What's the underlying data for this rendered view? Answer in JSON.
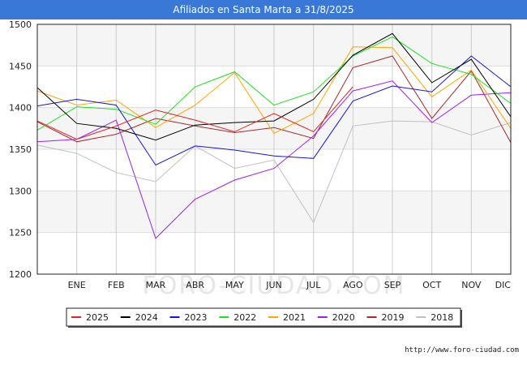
{
  "chart_data": {
    "type": "line",
    "title": "Afiliados en Santa Marta a 31/8/2025",
    "categories": [
      "DIC",
      "ENE",
      "FEB",
      "MAR",
      "ABR",
      "MAY",
      "JUN",
      "JUL",
      "AGO",
      "SEP",
      "OCT",
      "NOV",
      "DIC"
    ],
    "x_tick_labels": [
      "ENE",
      "FEB",
      "MAR",
      "ABR",
      "MAY",
      "JUN",
      "JUL",
      "AGO",
      "SEP",
      "OCT",
      "NOV",
      "DIC"
    ],
    "y_ticks": [
      1200,
      1250,
      1300,
      1350,
      1400,
      1450,
      1500
    ],
    "ylim": [
      1200,
      1500
    ],
    "grid": true,
    "legend_position": "bottom",
    "watermark": "FORO-CIUDAD.COM",
    "series": [
      {
        "name": "2025",
        "color": "#e8231f",
        "values": [
          1384,
          1362,
          1378,
          1397,
          1385,
          1371,
          1393,
          1371,
          1425,
          null,
          null,
          null,
          null
        ]
      },
      {
        "name": "2024",
        "color": "#000000",
        "values": [
          1424,
          1381,
          1375,
          1361,
          1379,
          1382,
          1384,
          1410,
          1463,
          1489,
          1430,
          1458,
          1389
        ]
      },
      {
        "name": "2023",
        "color": "#1515e0",
        "values": [
          1402,
          1410,
          1403,
          1331,
          1354,
          1349,
          1342,
          1339,
          1408,
          1426,
          1419,
          1462,
          1425
        ]
      },
      {
        "name": "2022",
        "color": "#22e022",
        "values": [
          1373,
          1401,
          1398,
          1380,
          1425,
          1443,
          1403,
          1419,
          1462,
          1485,
          1453,
          1440,
          1405
        ]
      },
      {
        "name": "2021",
        "color": "#ffa500",
        "values": [
          1420,
          1403,
          1409,
          1376,
          1403,
          1442,
          1369,
          1393,
          1473,
          1472,
          1413,
          1445,
          1375
        ]
      },
      {
        "name": "2020",
        "color": "#a020f0",
        "values": [
          1359,
          1362,
          1385,
          1243,
          1290,
          1313,
          1327,
          1366,
          1420,
          1432,
          1382,
          1415,
          1418
        ]
      },
      {
        "name": "2019",
        "color": "#a52a2a",
        "values": [
          1383,
          1359,
          1368,
          1387,
          1378,
          1370,
          1376,
          1363,
          1448,
          1462,
          1387,
          1444,
          1358
        ]
      },
      {
        "name": "2018",
        "color": "#c0c0c0",
        "values": [
          1355,
          1345,
          1322,
          1311,
          1354,
          1327,
          1337,
          1262,
          1378,
          1384,
          1383,
          1367,
          1382
        ]
      }
    ]
  },
  "source_text": "http://www.foro-ciudad.com"
}
